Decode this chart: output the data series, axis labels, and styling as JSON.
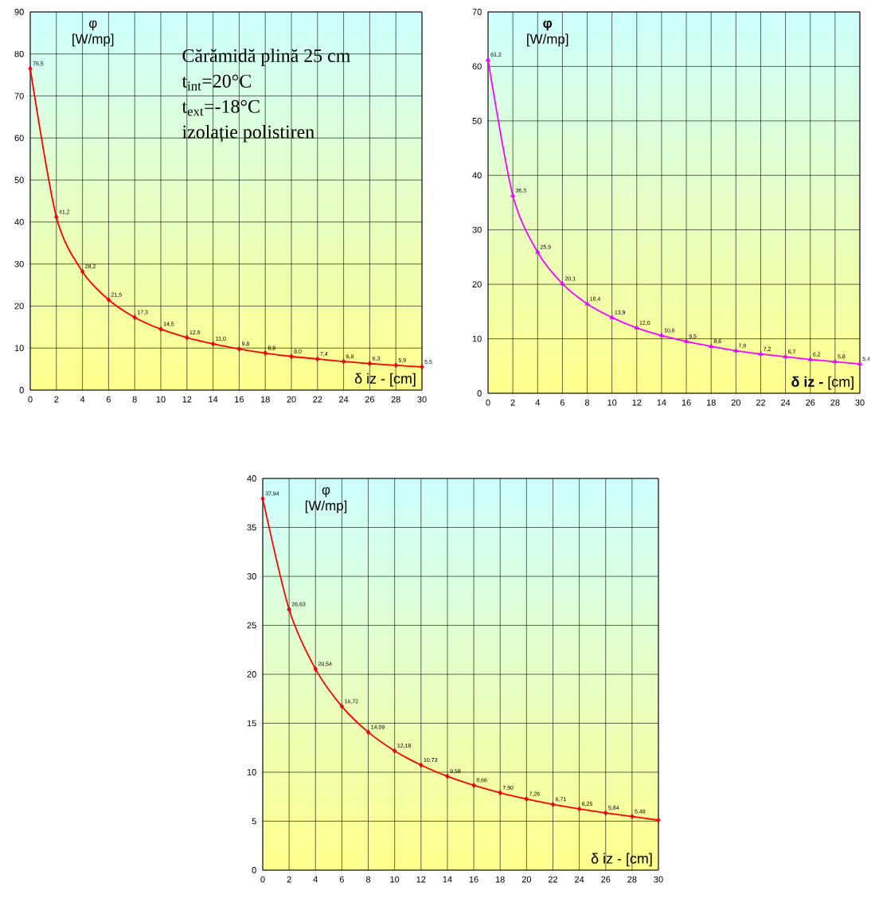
{
  "chart_data": [
    {
      "type": "line",
      "xlabel": "δ iz - [cm]",
      "ylabel": "φ [W/mp]",
      "annotations": [
        "Cărămidă plină 25 cm",
        "t$_{int}$=20°C",
        "t$_{ext}$=-18°C",
        "izolație polistiren"
      ],
      "x": [
        0,
        2,
        4,
        6,
        8,
        10,
        12,
        14,
        16,
        18,
        20,
        22,
        24,
        26,
        28,
        30
      ],
      "series": [
        {
          "color": "#ff0000",
          "values": [
            76.5,
            41.2,
            28.2,
            21.5,
            17.3,
            14.5,
            12.5,
            11.0,
            9.8,
            8.8,
            8.0,
            7.4,
            6.8,
            6.3,
            5.9,
            5.5
          ],
          "value_labels": [
            "76,5",
            "41,2",
            "28,2",
            "21,5",
            "17,3",
            "14,5",
            "12,5",
            "11,0",
            "9,8",
            "8,8",
            "8,0",
            "7,4",
            "6,8",
            "6,3",
            "5,9",
            "5,5"
          ]
        }
      ],
      "xlim": [
        0,
        30
      ],
      "ylim": [
        0,
        90
      ],
      "xticks": [
        0,
        2,
        4,
        6,
        8,
        10,
        12,
        14,
        16,
        18,
        20,
        22,
        24,
        26,
        28,
        30
      ],
      "yticks": [
        0,
        10,
        20,
        30,
        40,
        50,
        60,
        70,
        80,
        90
      ],
      "grid": true,
      "marker": "diamond",
      "line_style": "solid"
    },
    {
      "type": "line",
      "xlabel": "**δ iz -** [cm]",
      "ylabel": "**φ** [W/mp]",
      "x": [
        0,
        2,
        4,
        6,
        8,
        10,
        12,
        14,
        16,
        18,
        20,
        22,
        24,
        26,
        28,
        30
      ],
      "series": [
        {
          "color": "#ff00ff",
          "values": [
            61.2,
            36.3,
            25.9,
            20.1,
            16.4,
            13.9,
            12.0,
            10.6,
            9.5,
            8.6,
            7.8,
            7.2,
            6.7,
            6.2,
            5.8,
            5.4
          ],
          "value_labels": [
            "61,2",
            "36,3",
            "25,9",
            "20,1",
            "16,4",
            "13,9",
            "12,0",
            "10,6",
            "9,5",
            "8,6",
            "7,8",
            "7,2",
            "6,7",
            "6,2",
            "5,8",
            "5,4"
          ]
        }
      ],
      "xlim": [
        0,
        30
      ],
      "ylim": [
        0,
        70
      ],
      "xticks": [
        0,
        2,
        4,
        6,
        8,
        10,
        12,
        14,
        16,
        18,
        20,
        22,
        24,
        26,
        28,
        30
      ],
      "yticks": [
        0,
        10,
        20,
        30,
        40,
        50,
        60,
        70
      ],
      "grid": true,
      "marker": "triangle",
      "line_style": "solid"
    },
    {
      "type": "line",
      "xlabel": "δ iz - [cm]",
      "ylabel": "φ [W/mp]",
      "x": [
        0,
        2,
        4,
        6,
        8,
        10,
        12,
        14,
        16,
        18,
        20,
        22,
        24,
        26,
        28,
        30
      ],
      "series": [
        {
          "color": "#ff0000",
          "values": [
            37.94,
            26.63,
            20.54,
            16.72,
            14.09,
            12.18,
            10.73,
            9.58,
            8.66,
            7.9,
            7.26,
            6.71,
            6.25,
            5.84,
            5.48,
            5.1
          ],
          "value_labels": [
            "37,94",
            "26,63",
            "20,54",
            "16,72",
            "14,09",
            "12,18",
            "10,73",
            "9,58",
            "8,66",
            "7,90",
            "7,26",
            "6,71",
            "6,25",
            "5,84",
            "5,48",
            null
          ]
        }
      ],
      "xlim": [
        0,
        30
      ],
      "ylim": [
        0,
        40
      ],
      "xticks": [
        0,
        2,
        4,
        6,
        8,
        10,
        12,
        14,
        16,
        18,
        20,
        22,
        24,
        26,
        28,
        30
      ],
      "yticks": [
        0,
        5,
        10,
        15,
        20,
        25,
        30,
        35,
        40
      ],
      "grid": true,
      "marker": "diamond",
      "line_style": "solid"
    }
  ]
}
